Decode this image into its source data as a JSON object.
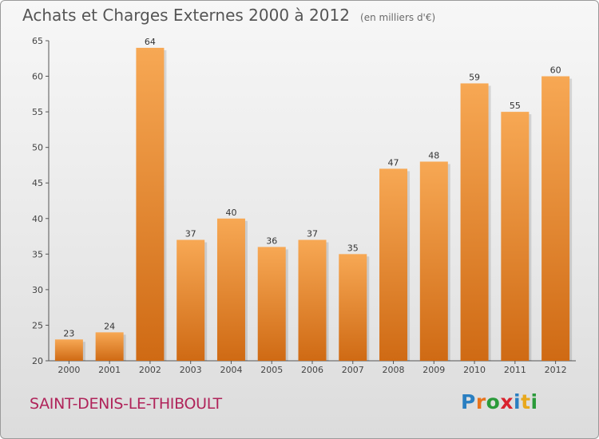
{
  "title": "Achats et Charges Externes 2000 à 2012",
  "unit": "(en milliers d'€)",
  "commune": "SAINT-DENIS-LE-THIBOULT",
  "logo": {
    "letters": [
      "P",
      "r",
      "o",
      "x",
      "i",
      "t",
      "i"
    ],
    "colors": [
      "#2a7fc1",
      "#e8731c",
      "#2a9a3a",
      "#d9232e",
      "#2a7fc1",
      "#e8a81c",
      "#2a9a3a"
    ]
  },
  "chart_data": {
    "type": "bar",
    "title": "Achats et Charges Externes 2000 à 2012",
    "subtitle": "(en milliers d'€)",
    "categories": [
      "2000",
      "2001",
      "2002",
      "2003",
      "2004",
      "2005",
      "2006",
      "2007",
      "2008",
      "2009",
      "2010",
      "2011",
      "2012"
    ],
    "values": [
      23,
      24,
      64,
      37,
      40,
      36,
      37,
      35,
      47,
      48,
      59,
      55,
      60
    ],
    "ylim": [
      20,
      65
    ],
    "yticks": [
      20,
      25,
      30,
      35,
      40,
      45,
      50,
      55,
      60,
      65
    ],
    "grid": false,
    "colors": {
      "bar_light": "#f7a854",
      "bar_dark": "#cf6a14",
      "axis": "#555555"
    }
  }
}
